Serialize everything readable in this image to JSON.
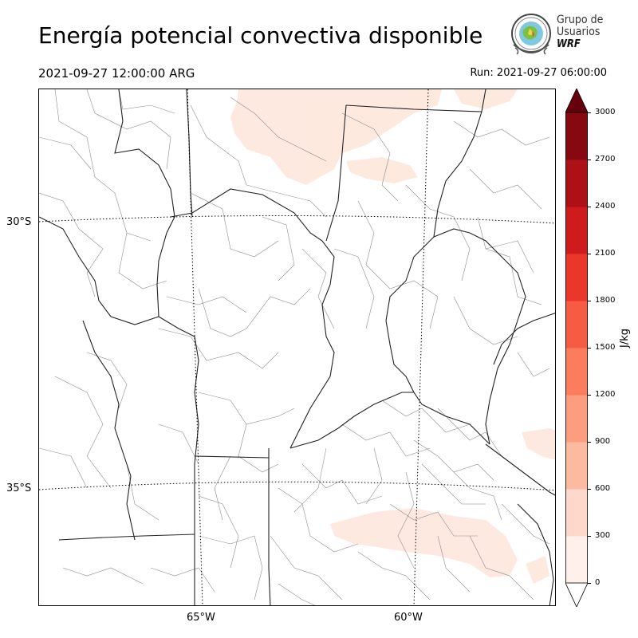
{
  "title": "Energía potencial convectiva disponible",
  "valid_time": "2021-09-27 12:00:00 ARG",
  "run_time": "Run: 2021-09-27 06:00:00",
  "logo": {
    "line1": "Grupo de",
    "line2": "Usuarios",
    "line3": "WRF"
  },
  "map": {
    "lat_labels": [
      "30°S",
      "35°S"
    ],
    "lon_labels": [
      "65°W",
      "60°W"
    ],
    "colors": {
      "boundary_major": "#222222",
      "boundary_minor": "#8c8c8c",
      "graticule": "#000000"
    }
  },
  "colorbar": {
    "label": "J/kg",
    "ticks": [
      "0",
      "300",
      "600",
      "900",
      "1200",
      "1500",
      "1800",
      "2100",
      "2400",
      "2700",
      "3000"
    ],
    "colors": [
      "#fff0eb",
      "#fed9cb",
      "#fcbba1",
      "#fc9d80",
      "#fb7d5e",
      "#f65b44",
      "#ea372b",
      "#ce1b1e",
      "#ad1016",
      "#860811"
    ],
    "extend_color": "#67000d"
  }
}
